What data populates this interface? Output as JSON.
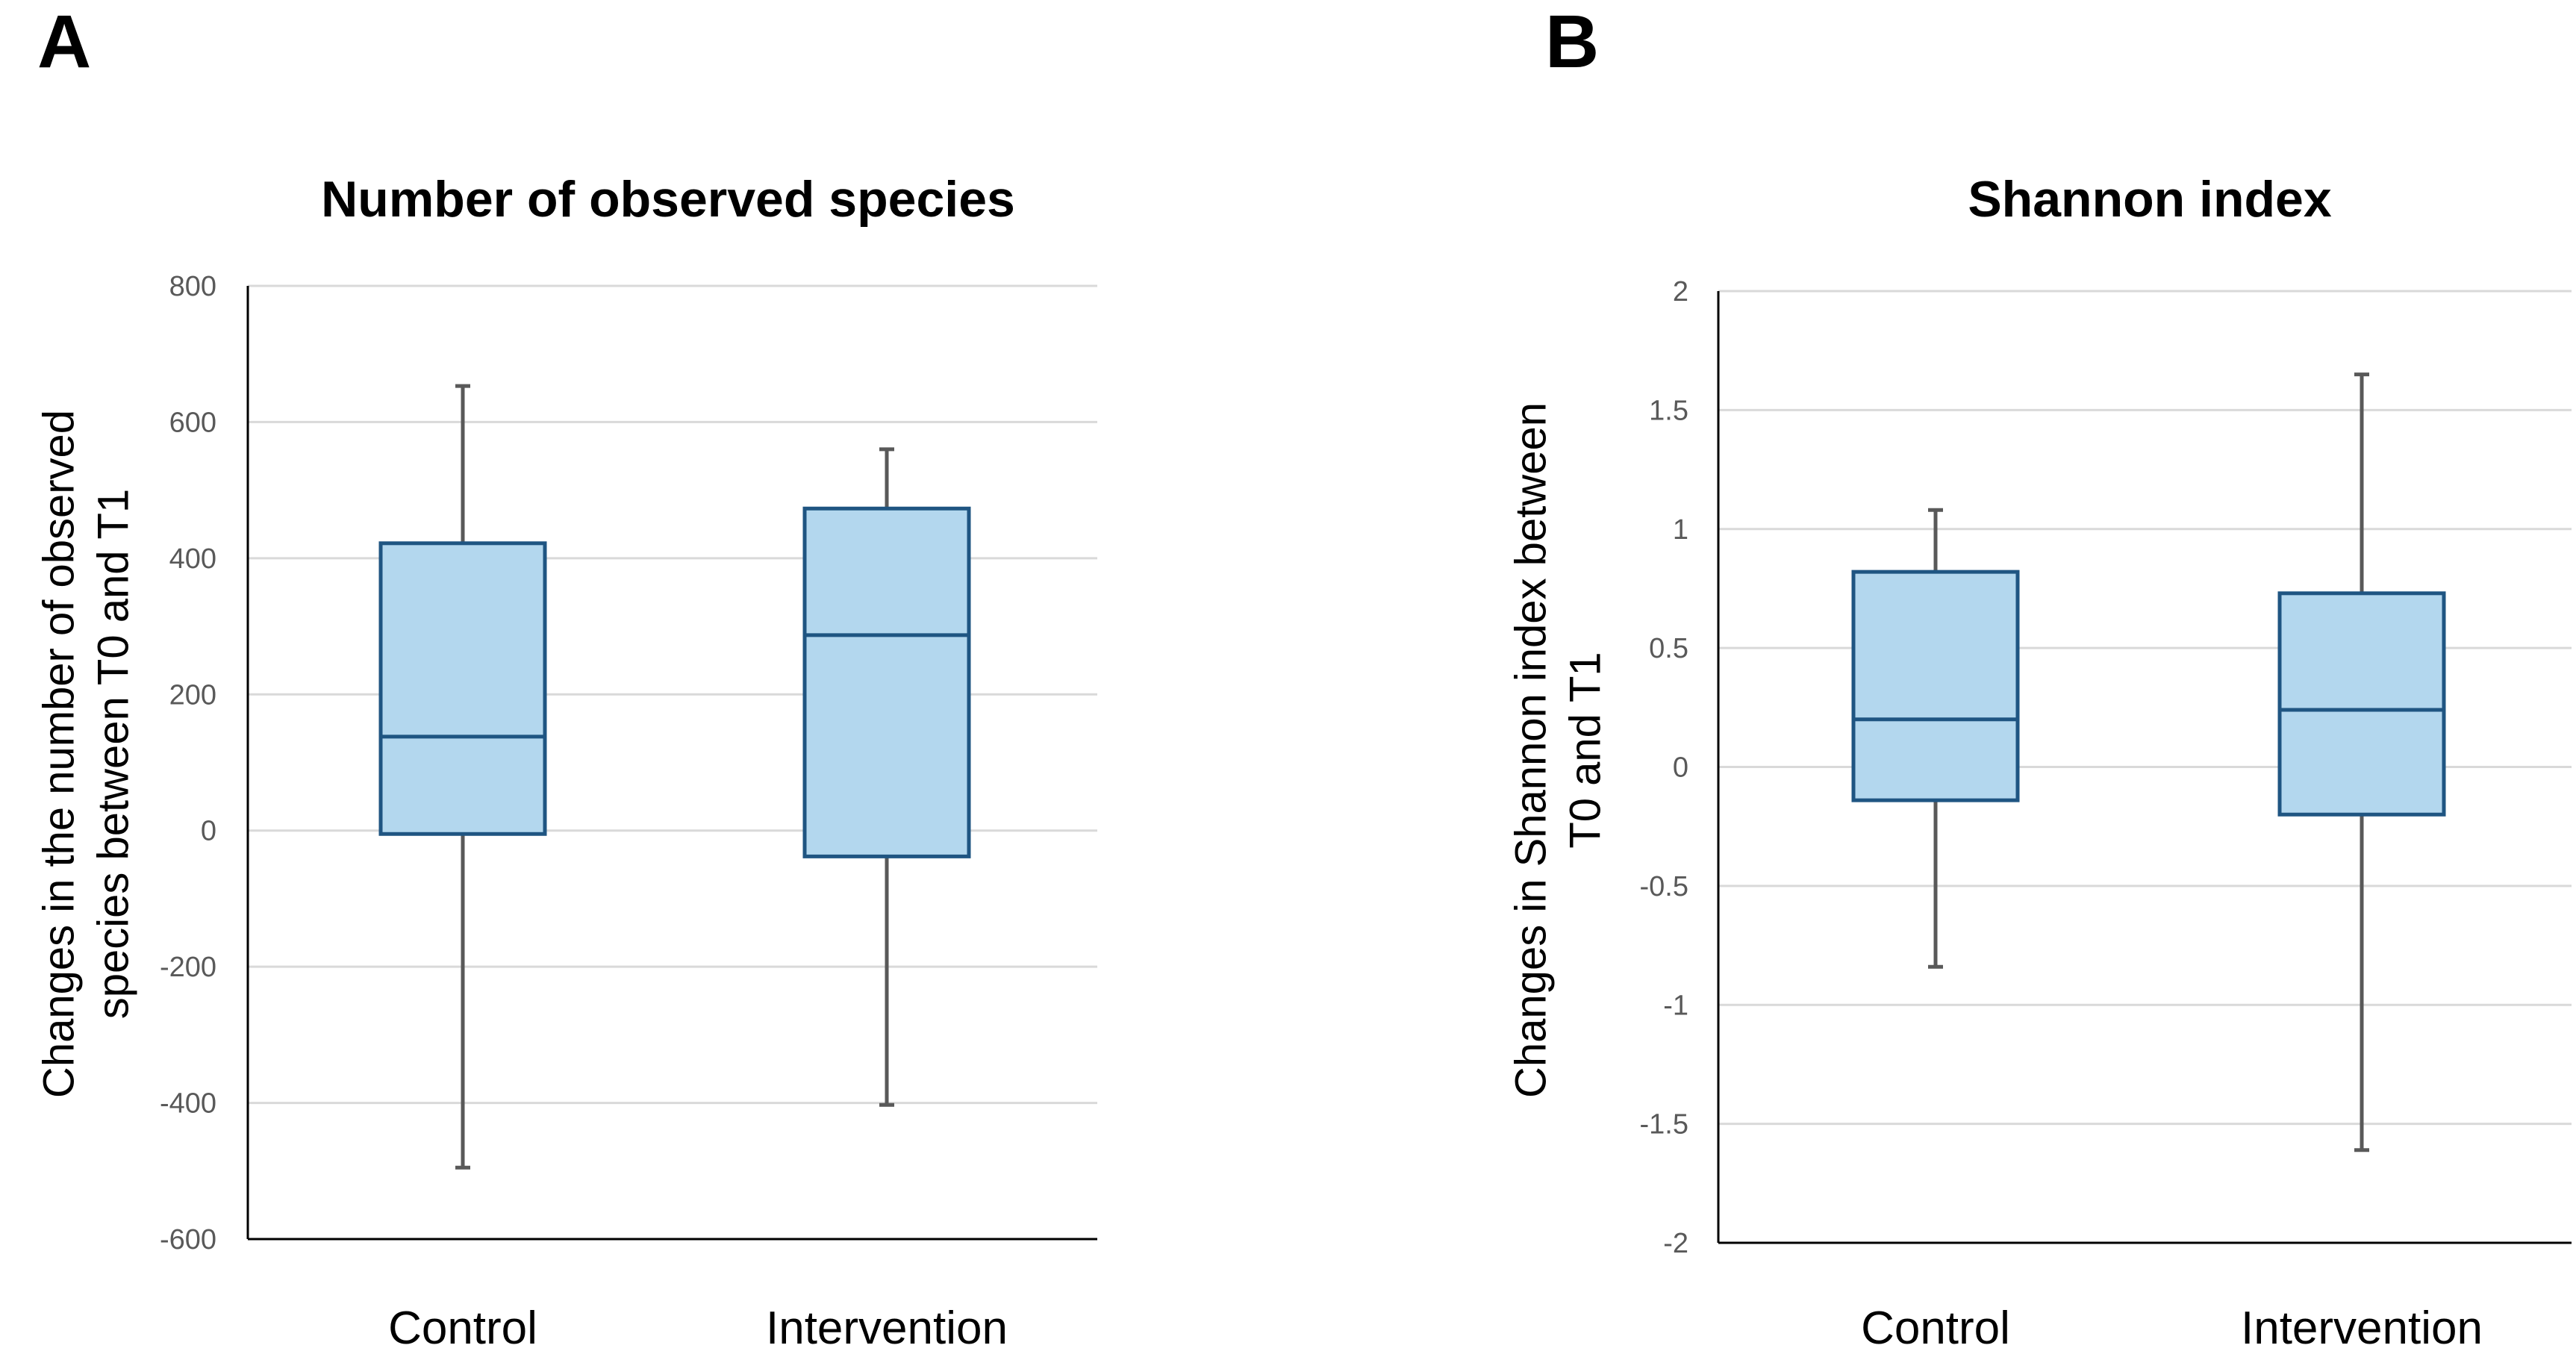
{
  "panels": [
    {
      "letter": "A",
      "title": "Number of observed species",
      "ylabel_line1": "Changes in the number of observed",
      "ylabel_line2": "species between T0 and T1"
    },
    {
      "letter": "B",
      "title": "Shannon index",
      "ylabel_line1": "Changes in Shannon index between",
      "ylabel_line2": "T0 and T1"
    }
  ],
  "colors": {
    "box_fill": "#b3d7ee",
    "box_stroke": "#1f5582",
    "whisker": "#595959",
    "grid": "#d9d9d9",
    "axis": "#000000"
  },
  "chart_data": [
    {
      "type": "boxplot",
      "title": "Number of observed species",
      "xlabel": "",
      "ylabel": "Changes in the number of observed species between T0 and T1",
      "ylim": [
        -600,
        800
      ],
      "yticks": [
        800,
        600,
        400,
        200,
        0,
        -200,
        -400,
        -600
      ],
      "ytick_labels": [
        "800",
        "600",
        "400",
        "200",
        "0",
        "-200",
        "-400",
        "-600"
      ],
      "grid": true,
      "categories": [
        "Control",
        "Intervention"
      ],
      "boxes": [
        {
          "min": -495,
          "q1": -5,
          "median": 138,
          "q3": 422,
          "max": 653
        },
        {
          "min": -403,
          "q1": -38,
          "median": 287,
          "q3": 473,
          "max": 560
        }
      ]
    },
    {
      "type": "boxplot",
      "title": "Shannon index",
      "xlabel": "",
      "ylabel": "Changes in Shannon index between T0 and T1",
      "ylim": [
        -2,
        2
      ],
      "yticks": [
        2,
        1.5,
        1,
        0.5,
        0,
        -0.5,
        -1,
        -1.5,
        -2
      ],
      "ytick_labels": [
        "2",
        "1.5",
        "1",
        "0.5",
        "0",
        "-0.5",
        "-1",
        "-1.5",
        "-2"
      ],
      "grid": true,
      "categories": [
        "Control",
        "Intervention"
      ],
      "boxes": [
        {
          "min": -0.84,
          "q1": -0.14,
          "median": 0.2,
          "q3": 0.82,
          "max": 1.08
        },
        {
          "min": -1.61,
          "q1": -0.2,
          "median": 0.24,
          "q3": 0.73,
          "max": 1.65
        }
      ]
    }
  ]
}
